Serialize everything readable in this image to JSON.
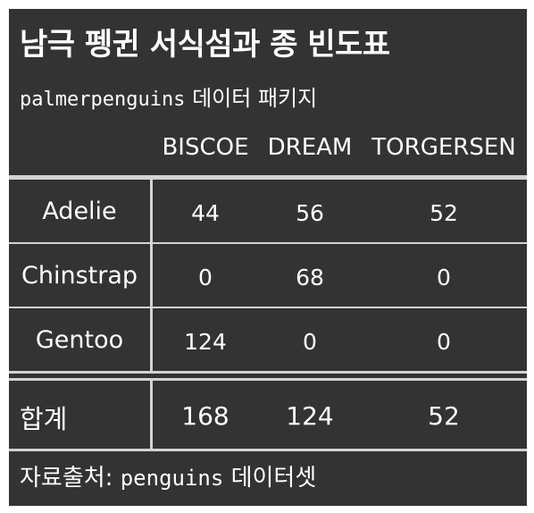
{
  "table": {
    "title": "남극 펭귄 서식섬과 종 빈도표",
    "subtitle_code": "palmerpenguins",
    "subtitle_text": "데이터 패키지",
    "columns": [
      "BISCOE",
      "DREAM",
      "TORGERSEN"
    ],
    "rows": [
      {
        "label": "Adelie",
        "values": [
          "44",
          "56",
          "52"
        ]
      },
      {
        "label": "Chinstrap",
        "values": [
          "0",
          "68",
          "0"
        ]
      },
      {
        "label": "Gentoo",
        "values": [
          "124",
          "0",
          "0"
        ]
      }
    ],
    "total": {
      "label": "합계",
      "values": [
        "168",
        "124",
        "52"
      ]
    },
    "source_prefix": "자료출처:",
    "source_code": "penguins",
    "source_suffix": "데이터셋"
  },
  "colors": {
    "background": "#333333",
    "text": "#ffffff",
    "rule": "#d3d3d3"
  }
}
